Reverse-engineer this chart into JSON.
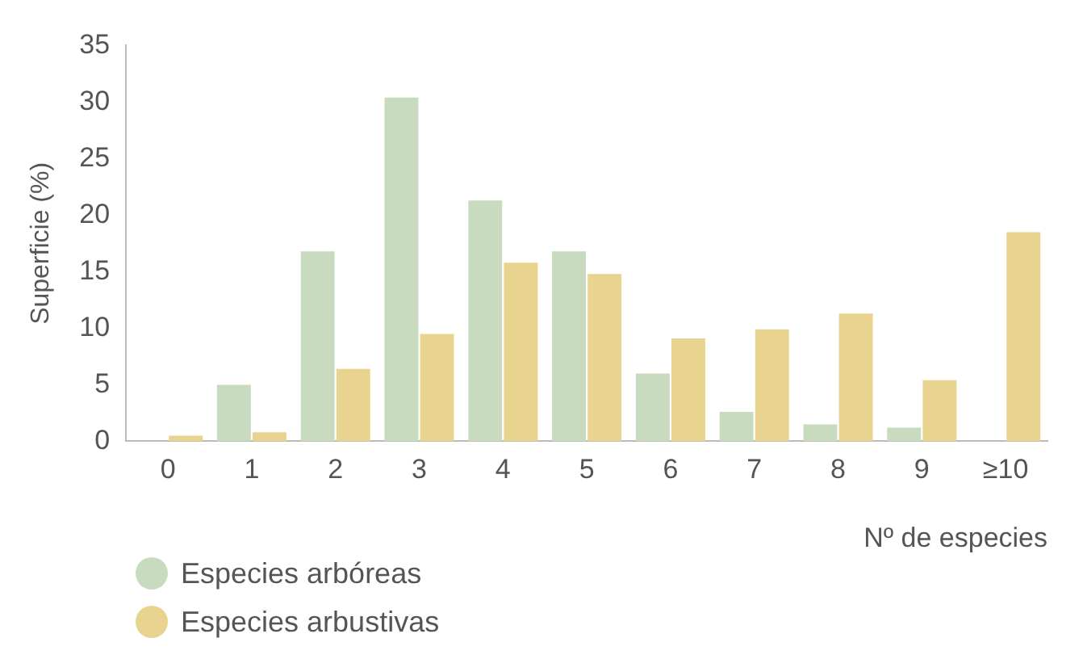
{
  "chart_data": {
    "type": "bar",
    "xlabel": "Nº de especies",
    "ylabel": "Superficie (%)",
    "categories": [
      "0",
      "1",
      "2",
      "3",
      "4",
      "5",
      "6",
      "7",
      "8",
      "9",
      "≥10"
    ],
    "series": [
      {
        "name": "Especies arbóreas",
        "color": "#c9dbbf",
        "values": [
          0,
          5.0,
          16.8,
          30.4,
          21.3,
          16.8,
          6.0,
          2.6,
          1.5,
          1.2,
          0
        ]
      },
      {
        "name": "Especies arbustivas",
        "color": "#e8d48f",
        "values": [
          0.5,
          0.8,
          6.4,
          9.5,
          15.8,
          14.8,
          9.1,
          9.9,
          11.3,
          5.4,
          18.5
        ]
      }
    ],
    "ylim": [
      0,
      35
    ],
    "yticks": [
      0,
      5,
      10,
      15,
      20,
      25,
      30,
      35
    ],
    "grid": false,
    "legend": "bottom left"
  }
}
